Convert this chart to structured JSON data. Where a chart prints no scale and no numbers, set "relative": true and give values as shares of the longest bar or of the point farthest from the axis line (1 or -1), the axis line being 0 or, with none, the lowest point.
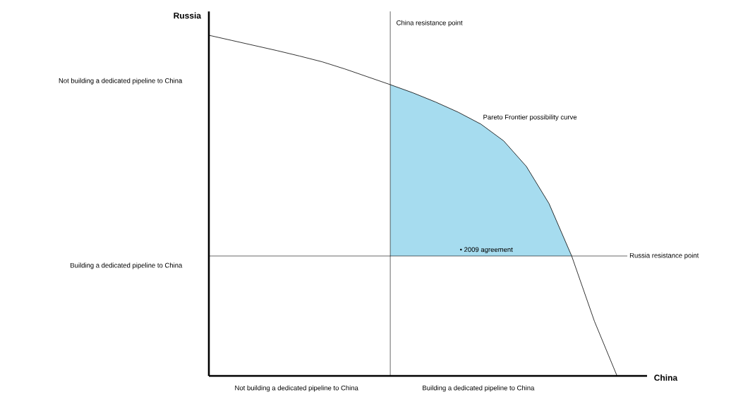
{
  "chart_data": {
    "type": "line",
    "relative": true,
    "xlabel": "China",
    "ylabel": "Russia",
    "categories": [
      null,
      null,
      null,
      null,
      null,
      null,
      null,
      null,
      null,
      null,
      null,
      null,
      null,
      null,
      null,
      null,
      null,
      null,
      null
    ],
    "series": [
      {
        "color": "#000000",
        "values": [
          1,
          0.985,
          0.97,
          0.955,
          0.939,
          0.922,
          0.901,
          0.878,
          0.855,
          0.831,
          0.804,
          0.774,
          0.739,
          0.69,
          0.615,
          0.506,
          0.352,
          0.161,
          0
        ],
        "lower": [
          null,
          null,
          null,
          null,
          null,
          null,
          null,
          null,
          0.352,
          0.352,
          0.352,
          0.352,
          0.352,
          0.352,
          0.352,
          0.352,
          0.352,
          null,
          null
        ],
        "upper": [
          null,
          null,
          null,
          null,
          null,
          null,
          null,
          null,
          0.855,
          0.831,
          0.804,
          0.774,
          0.739,
          0.69,
          0.615,
          0.506,
          0.352,
          null,
          null
        ]
      }
    ],
    "ref_lines": [
      {
        "axis": "y",
        "value": 0.352,
        "label": "Russia resistance point",
        "color": "#000000"
      }
    ],
    "annotations": [
      "China resistance point",
      "Pareto Frontier possibility curve",
      "• 2009 agreement",
      "Not building a dedicated pipeline to China",
      "Building a dedicated pipeline to China",
      "Not building a dedicated pipeline to China",
      "Building a dedicated pipeline to China"
    ],
    "marker": "none",
    "line_style": "solid"
  }
}
